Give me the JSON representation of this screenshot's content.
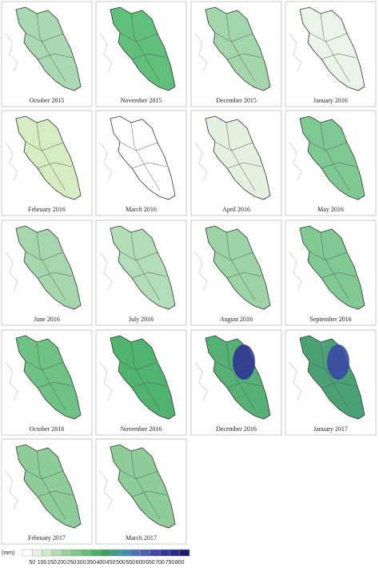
{
  "panels": [
    {
      "label": "October 2015",
      "color": "#a9d9b1"
    },
    {
      "label": "November 2015",
      "color": "#5fbf7b"
    },
    {
      "label": "December 2015",
      "color": "#a3d6ab"
    },
    {
      "label": "January 2016",
      "color": "#eaf4e9"
    },
    {
      "label": "February 2016",
      "color": "#d6ecc3"
    },
    {
      "label": "March 2016",
      "color": "#ffffff"
    },
    {
      "label": "April 2016",
      "color": "#e4f1e1"
    },
    {
      "label": "May 2016",
      "color": "#7ec991"
    },
    {
      "label": "June 2016",
      "color": "#a6d7ac"
    },
    {
      "label": "July 2016",
      "color": "#b3ddb7"
    },
    {
      "label": "August 2016",
      "color": "#9dd4a5"
    },
    {
      "label": "September 2016",
      "color": "#80c992"
    },
    {
      "label": "October 2016",
      "color": "#6dc284"
    },
    {
      "label": "November 2016",
      "color": "#50b470"
    },
    {
      "label": "December 2016",
      "color": "#56b175",
      "accent": "#2f3592"
    },
    {
      "label": "January 2017",
      "color": "#4aa174",
      "accent": "#3a48a4"
    },
    {
      "label": "February 2017",
      "color": "#8ecd9a"
    },
    {
      "label": "March 2017",
      "color": "#8ecd9a"
    }
  ],
  "legend": {
    "unit": "(mm)",
    "ticks": [
      50,
      100,
      150,
      200,
      250,
      300,
      350,
      400,
      450,
      500,
      550,
      600,
      650,
      700,
      750,
      800
    ],
    "colors": [
      "#ffffff",
      "#e6f2e6",
      "#cfe8cc",
      "#b5dcb3",
      "#9ad19d",
      "#80c689",
      "#66bb77",
      "#4fae67",
      "#3fa05a",
      "#3a9f86",
      "#3d8fb0",
      "#4a74b5",
      "#4a5fb0",
      "#3f48a6",
      "#33369a",
      "#2a2a88",
      "#1c1c6e"
    ]
  }
}
